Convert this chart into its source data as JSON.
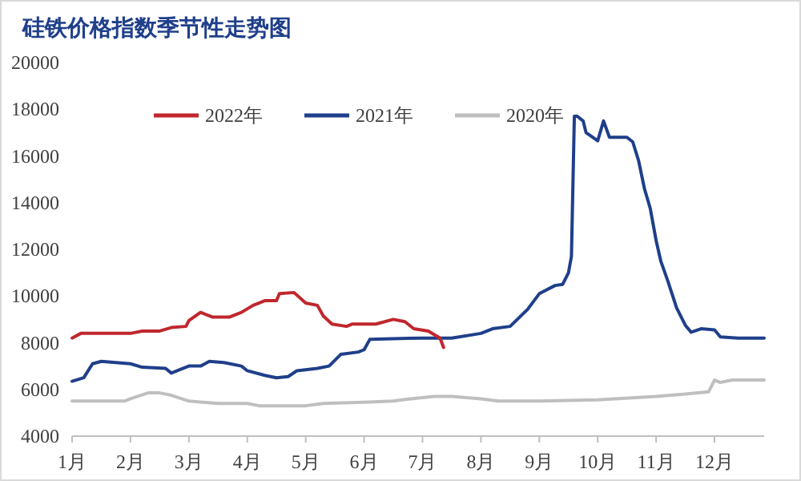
{
  "chart_data": {
    "type": "line",
    "title": "硅铁价格指数季节性走势图",
    "xlim": [
      1,
      12.85
    ],
    "xticks": [
      {
        "value": 1,
        "label": "1月"
      },
      {
        "value": 2,
        "label": "2月"
      },
      {
        "value": 3,
        "label": "3月"
      },
      {
        "value": 4,
        "label": "4月"
      },
      {
        "value": 5,
        "label": "5月"
      },
      {
        "value": 6,
        "label": "6月"
      },
      {
        "value": 7,
        "label": "7月"
      },
      {
        "value": 8,
        "label": "8月"
      },
      {
        "value": 9,
        "label": "9月"
      },
      {
        "value": 10,
        "label": "10月"
      },
      {
        "value": 11,
        "label": "11月"
      },
      {
        "value": 12,
        "label": "12月"
      }
    ],
    "ylim": [
      4000,
      20000
    ],
    "yticks": [
      4000,
      6000,
      8000,
      10000,
      12000,
      14000,
      16000,
      18000,
      20000
    ],
    "grid": false,
    "legend": "top",
    "marker": "none",
    "line_style": "solid",
    "series": [
      {
        "name": "2022年",
        "color": "#c0272d",
        "x": [
          1,
          1.15,
          1.4,
          2,
          2.2,
          2.5,
          2.7,
          2.95,
          3,
          3.2,
          3.4,
          3.7,
          3.9,
          4.1,
          4.3,
          4.5,
          4.55,
          4.8,
          5,
          5.2,
          5.3,
          5.45,
          5.7,
          5.8,
          6.2,
          6.5,
          6.7,
          6.85,
          7.1,
          7.3,
          7.36
        ],
        "values": [
          8200,
          8400,
          8400,
          8400,
          8500,
          8500,
          8650,
          8700,
          8950,
          9300,
          9100,
          9100,
          9300,
          9600,
          9800,
          9800,
          10100,
          10150,
          9700,
          9600,
          9150,
          8800,
          8700,
          8800,
          8800,
          9000,
          8900,
          8600,
          8500,
          8200,
          7800
        ]
      },
      {
        "name": "2021年",
        "color": "#1f3f8a",
        "x": [
          1,
          1.2,
          1.35,
          1.5,
          2,
          2.2,
          2.6,
          2.7,
          2.8,
          3,
          3.2,
          3.35,
          3.6,
          3.9,
          4,
          4.3,
          4.5,
          4.7,
          4.85,
          5.2,
          5.4,
          5.6,
          5.9,
          6,
          6.1,
          7,
          7.5,
          8,
          8.2,
          8.5,
          8.8,
          9,
          9.27,
          9.4,
          9.5,
          9.55,
          9.6,
          9.65,
          9.75,
          9.8,
          10,
          10.1,
          10.2,
          10.5,
          10.6,
          10.7,
          10.8,
          10.9,
          11,
          11.08,
          11.2,
          11.35,
          11.5,
          11.6,
          11.77,
          12,
          12.1,
          12.4,
          12.85
        ],
        "values": [
          6350,
          6500,
          7100,
          7200,
          7100,
          6950,
          6900,
          6700,
          6800,
          7000,
          7000,
          7200,
          7150,
          7000,
          6800,
          6600,
          6500,
          6550,
          6800,
          6900,
          7000,
          7500,
          7600,
          7700,
          8150,
          8200,
          8200,
          8400,
          8600,
          8700,
          9430,
          10100,
          10450,
          10500,
          11000,
          11700,
          17700,
          17700,
          17500,
          17000,
          16650,
          17500,
          16800,
          16800,
          16600,
          15800,
          14600,
          13750,
          12380,
          11500,
          10650,
          9500,
          8750,
          8450,
          8600,
          8550,
          8250,
          8200,
          8200
        ]
      },
      {
        "name": "2020年",
        "color": "#bfbfbf",
        "x": [
          1,
          1.9,
          2,
          2.3,
          2.5,
          2.7,
          3,
          3.5,
          4,
          4.2,
          5,
          5.3,
          6,
          6.5,
          6.8,
          7.2,
          7.5,
          8,
          8.3,
          9,
          10,
          10.3,
          11,
          11.5,
          11.9,
          12,
          12.1,
          12.3,
          12.85
        ],
        "values": [
          5500,
          5500,
          5600,
          5850,
          5850,
          5750,
          5500,
          5400,
          5400,
          5300,
          5300,
          5400,
          5450,
          5500,
          5600,
          5700,
          5700,
          5600,
          5500,
          5500,
          5550,
          5600,
          5700,
          5800,
          5900,
          6400,
          6300,
          6400,
          6400
        ]
      }
    ]
  }
}
